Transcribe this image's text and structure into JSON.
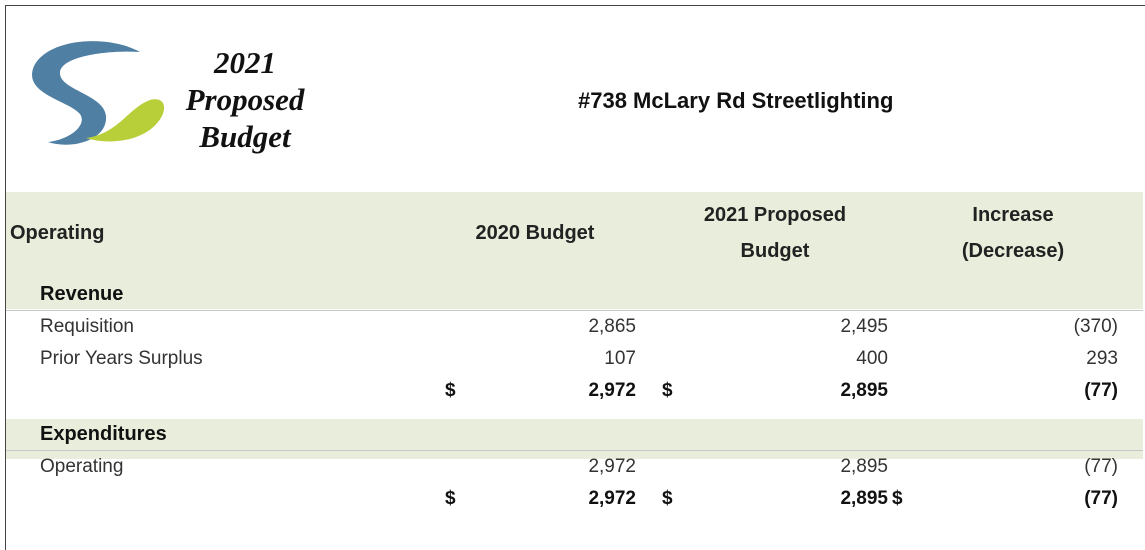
{
  "header": {
    "logo_text": [
      "2021",
      "Proposed",
      "Budget"
    ],
    "title": "#738 McLary Rd Streetlighting"
  },
  "table": {
    "columns": [
      [
        "Operating"
      ],
      [
        "2020 Budget"
      ],
      [
        "2021 Proposed",
        "Budget"
      ],
      [
        "Increase",
        "(Decrease)"
      ]
    ],
    "sections": [
      {
        "name": "Revenue",
        "rows": [
          {
            "label": "Requisition",
            "cells": [
              "2,865",
              "2,495",
              "(370)"
            ]
          },
          {
            "label": "Prior Years Surplus",
            "cells": [
              "107",
              "400",
              "293"
            ]
          }
        ],
        "total": [
          {
            "symbol": "$",
            "value": "2,972"
          },
          {
            "symbol": "$",
            "value": "2,895"
          },
          {
            "value": "(77)"
          }
        ]
      },
      {
        "name": "Expenditures",
        "rows": [
          {
            "label": "Operating",
            "cells": [
              "2,972",
              "2,895",
              "(77)"
            ]
          }
        ],
        "total": [
          {
            "symbol": "$",
            "value": "2,972"
          },
          {
            "symbol": "$",
            "value": "2,895"
          },
          {
            "symbol": "$",
            "value": "(77)"
          }
        ]
      }
    ]
  }
}
